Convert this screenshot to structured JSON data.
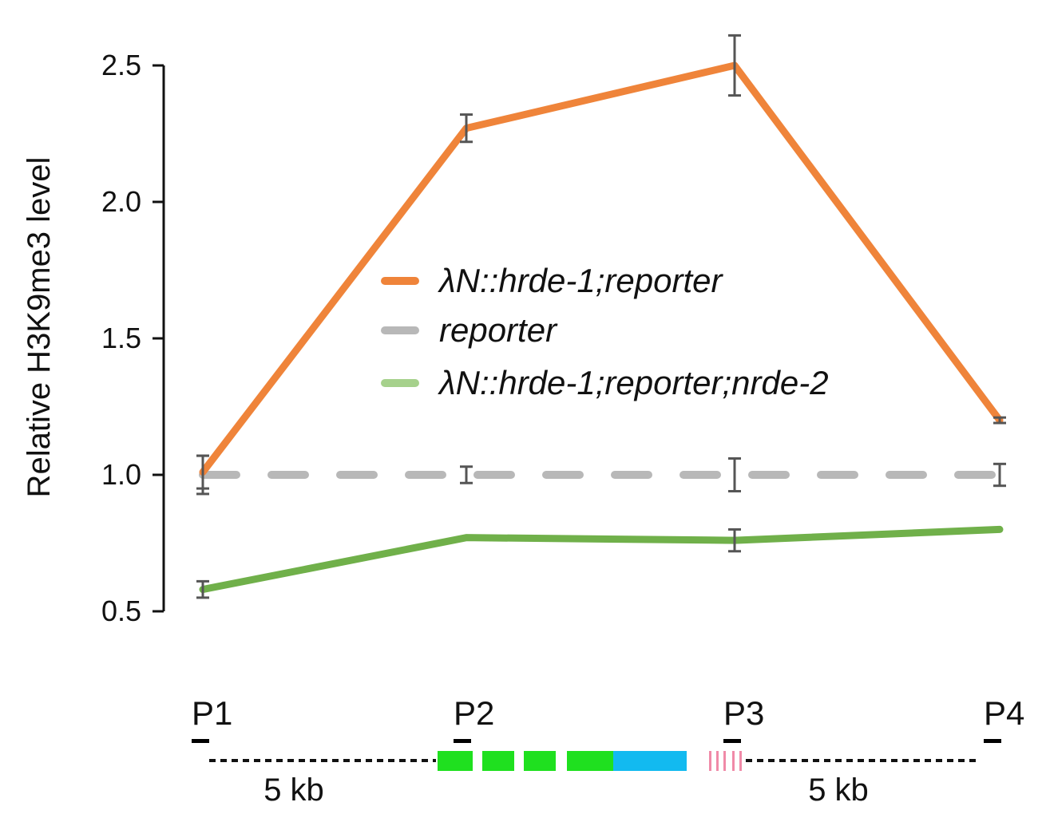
{
  "chart_data": {
    "type": "line",
    "title": "",
    "xlabel": "",
    "ylabel": "Relative H3K9me3 level",
    "ylim": [
      0.5,
      2.5
    ],
    "yticks": [
      "0.5",
      "1.0",
      "1.5",
      "2.0",
      "2.5"
    ],
    "categories": [
      "P1",
      "P2",
      "P3",
      "P4"
    ],
    "series": [
      {
        "name": "λN::hrde-1;reporter",
        "color": "#ef843a",
        "dash": "solid",
        "values": [
          1.01,
          2.27,
          2.5,
          1.2
        ],
        "errors": [
          0.06,
          0.05,
          0.11,
          0.01
        ]
      },
      {
        "name": "reporter",
        "color": "#b8b8b8",
        "dash": "dashed",
        "values": [
          1.0,
          1.0,
          1.0,
          1.0
        ],
        "errors": [
          0.07,
          0.03,
          0.06,
          0.04
        ]
      },
      {
        "name": "λN::hrde-1;reporter;nrde-2",
        "color": "#70b04a",
        "legend_color": "#a6d18c",
        "dash": "solid",
        "values": [
          0.58,
          0.77,
          0.76,
          0.8
        ],
        "errors": [
          0.03,
          0.0,
          0.04,
          0.0
        ]
      }
    ],
    "legend_position": "center"
  },
  "schematic": {
    "probes": [
      "P1",
      "P2",
      "P3",
      "P4"
    ],
    "scale_left": "5 kb",
    "scale_right": "5 kb",
    "colors": {
      "green_segment": "#1fe01f",
      "blue_segment": "#12baf0",
      "pink_marks": "#f08aa8",
      "probe_bar": "#000000"
    }
  }
}
